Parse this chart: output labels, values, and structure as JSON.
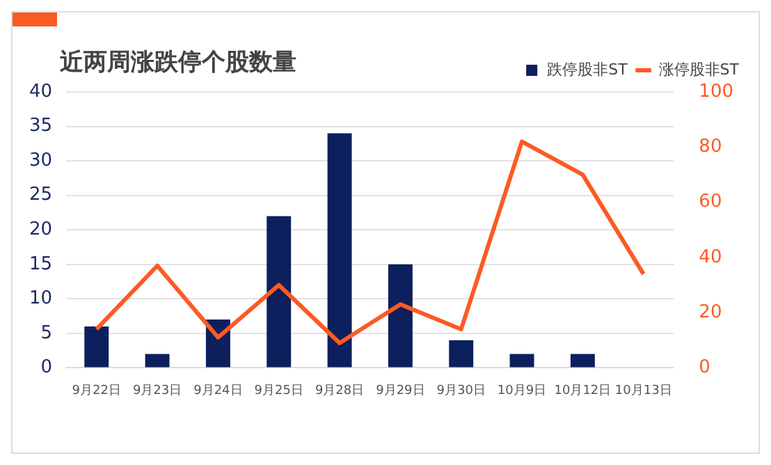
{
  "chart_data": {
    "type": "bar",
    "title": "近两周涨跌停个股数量",
    "categories": [
      "9月22日",
      "9月23日",
      "9月24日",
      "9月25日",
      "9月28日",
      "9月29日",
      "9月30日",
      "10月9日",
      "10月12日",
      "10月13日"
    ],
    "series": [
      {
        "name": "跌停股非ST",
        "color": "#0d1f5c",
        "values": [
          6,
          2,
          7,
          22,
          34,
          15,
          4,
          2,
          2,
          null
        ]
      },
      {
        "name": "涨停股非ST",
        "type": "line",
        "axis": "y2",
        "color": "#fc5a24",
        "values": [
          14,
          37,
          11,
          30,
          9,
          23,
          14,
          82,
          70,
          34
        ]
      }
    ],
    "ylim": [
      0,
      40
    ],
    "yticks": [
      0,
      5,
      10,
      15,
      20,
      25,
      30,
      35,
      40
    ],
    "y2lim": [
      0,
      100
    ],
    "y2ticks": [
      0,
      20,
      40,
      60,
      80,
      100
    ],
    "grid": "y",
    "legend": "top right",
    "marker": "none",
    "line_style": "solid"
  }
}
